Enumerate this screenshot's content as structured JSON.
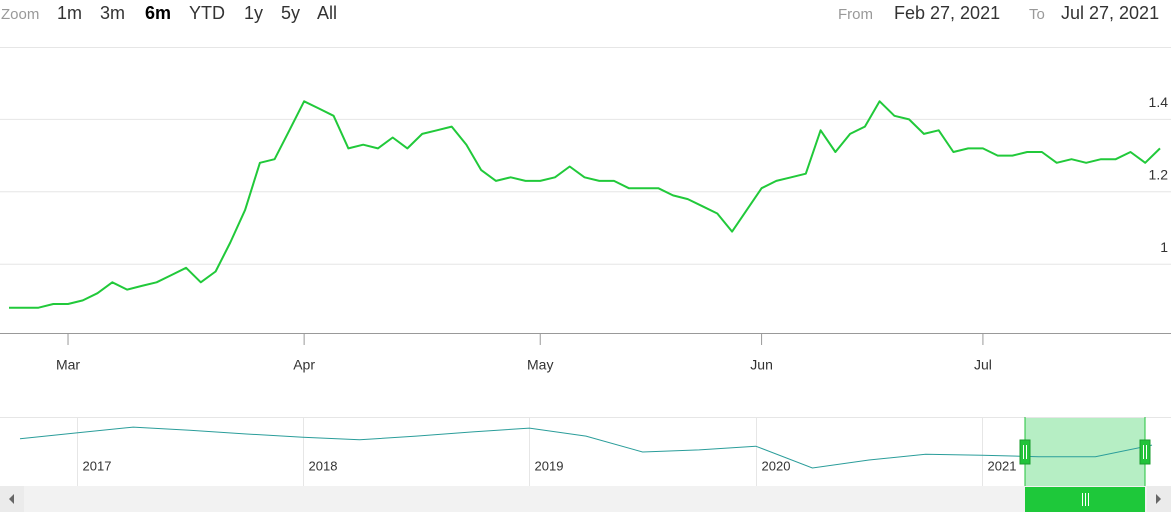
{
  "chart_data": {
    "type": "line",
    "range_selector": {
      "zoom_label": "Zoom",
      "buttons": [
        "1m",
        "3m",
        "6m",
        "YTD",
        "1y",
        "5y",
        "All"
      ],
      "selected": 2,
      "from_label": "From",
      "from": "Feb 27, 2021",
      "to_label": "To",
      "to": "Jul 27, 2021"
    },
    "categories": [
      null,
      null,
      null,
      null,
      "Mar",
      null,
      null,
      null,
      null,
      null,
      null,
      null,
      null,
      null,
      null,
      null,
      null,
      null,
      null,
      null,
      "Apr",
      null,
      null,
      null,
      null,
      null,
      null,
      null,
      null,
      null,
      null,
      null,
      null,
      null,
      null,
      null,
      "May",
      null,
      null,
      null,
      null,
      null,
      null,
      null,
      null,
      null,
      null,
      null,
      null,
      null,
      null,
      "Jun",
      null,
      null,
      null,
      null,
      null,
      null,
      null,
      null,
      null,
      null,
      null,
      null,
      null,
      null,
      "Jul",
      null,
      null,
      null,
      null,
      null,
      null,
      null,
      null,
      null,
      null,
      null,
      null
    ],
    "values": [
      0.88,
      0.88,
      0.88,
      0.89,
      0.89,
      0.9,
      0.92,
      0.95,
      0.93,
      0.94,
      0.95,
      0.97,
      0.99,
      0.95,
      0.98,
      1.06,
      1.15,
      1.28,
      1.29,
      1.37,
      1.45,
      1.43,
      1.41,
      1.32,
      1.33,
      1.32,
      1.35,
      1.32,
      1.36,
      1.37,
      1.38,
      1.33,
      1.26,
      1.23,
      1.24,
      1.23,
      1.23,
      1.24,
      1.27,
      1.24,
      1.23,
      1.23,
      1.21,
      1.21,
      1.21,
      1.19,
      1.18,
      1.16,
      1.14,
      1.09,
      1.15,
      1.21,
      1.23,
      1.24,
      1.25,
      1.37,
      1.31,
      1.36,
      1.38,
      1.45,
      1.41,
      1.4,
      1.36,
      1.37,
      1.31,
      1.32,
      1.32,
      1.3,
      1.3,
      1.31,
      1.31,
      1.28,
      1.29,
      1.28,
      1.29,
      1.29,
      1.31,
      1.28,
      1.32
    ],
    "color": "#21c93a",
    "ylim": [
      0.81,
      1.6
    ],
    "yticks": [
      1.0,
      1.2,
      1.4
    ],
    "grid": true,
    "navigator": {
      "categories": [
        null,
        "2017",
        null,
        null,
        null,
        "2018",
        null,
        null,
        null,
        "2019",
        null,
        null,
        null,
        "2020",
        null,
        null,
        null,
        "2021",
        null,
        null,
        null
      ],
      "values": [
        1.49,
        1.6,
        1.71,
        1.65,
        1.58,
        1.52,
        1.47,
        1.54,
        1.62,
        1.69,
        1.54,
        1.24,
        1.28,
        1.35,
        0.94,
        1.09,
        1.2,
        1.18,
        1.15,
        1.15,
        1.37
      ],
      "color": "#2a9d9a",
      "ylim": [
        0.6,
        1.9
      ]
    }
  }
}
